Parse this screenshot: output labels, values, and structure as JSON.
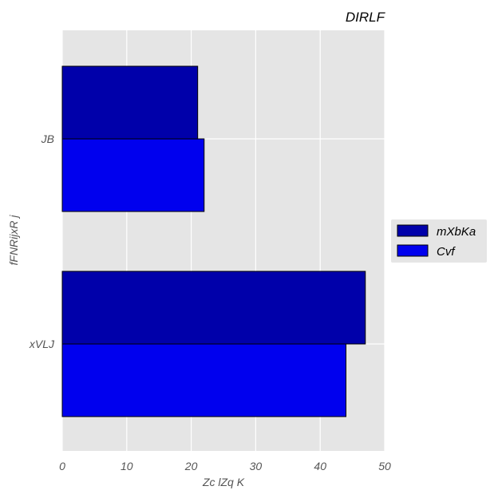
{
  "chart_data": {
    "type": "bar",
    "orientation": "horizontal",
    "title": "DIRLF",
    "xlabel": "Zc lZq K",
    "ylabel": "fFNRijxR j",
    "categories": [
      "xVLJ",
      "JB"
    ],
    "series": [
      {
        "name": "mXbKa",
        "color": "#0000aa",
        "values": [
          47,
          21
        ]
      },
      {
        "name": "Cvf",
        "color": "#0000ee",
        "values": [
          44,
          22
        ]
      }
    ],
    "xlim": [
      0,
      50
    ],
    "xticks": [
      0,
      10,
      20,
      30,
      40,
      50
    ],
    "grid": true,
    "legend_position": "right",
    "background": "#e5e5e5"
  }
}
